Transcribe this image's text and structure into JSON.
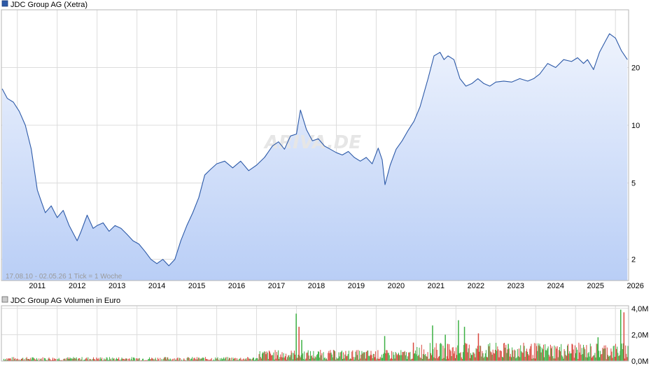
{
  "chart_data": [
    {
      "type": "line",
      "title": "JDC Group AG (Xetra)",
      "scale": "log",
      "grid": true,
      "series_color": "#2d5aa8",
      "fill_color_top": "#eef3fd",
      "fill_color_bottom": "#b9cef6",
      "xlim": [
        2010.6,
        2026.33
      ],
      "ylim": [
        1.55,
        40
      ],
      "x_tick_labels": [
        "2011",
        "2012",
        "2013",
        "2014",
        "2015",
        "2016",
        "2017",
        "2018",
        "2019",
        "2020",
        "2021",
        "2022",
        "2023",
        "2024",
        "2025",
        "2026"
      ],
      "y_tick_labels": [
        "2",
        "5",
        "10",
        "20"
      ],
      "y_ticks": [
        2,
        5,
        10,
        20
      ],
      "range_note": "17.08.10 - 02.05.26   1 Tick = 1 Woche",
      "watermark": "ARIVA.DE",
      "x": [
        2010.62,
        2010.75,
        2010.9,
        2011.05,
        2011.2,
        2011.35,
        2011.5,
        2011.6,
        2011.7,
        2011.85,
        2012.0,
        2012.15,
        2012.3,
        2012.5,
        2012.6,
        2012.75,
        2012.9,
        2013.0,
        2013.15,
        2013.3,
        2013.45,
        2013.6,
        2013.75,
        2013.9,
        2014.05,
        2014.2,
        2014.35,
        2014.5,
        2014.65,
        2014.8,
        2014.95,
        2015.1,
        2015.25,
        2015.4,
        2015.55,
        2015.7,
        2015.85,
        2016.0,
        2016.2,
        2016.4,
        2016.6,
        2016.8,
        2017.0,
        2017.2,
        2017.4,
        2017.55,
        2017.7,
        2017.85,
        2018.0,
        2018.1,
        2018.25,
        2018.4,
        2018.55,
        2018.7,
        2018.85,
        2019.0,
        2019.15,
        2019.3,
        2019.45,
        2019.6,
        2019.75,
        2019.9,
        2020.05,
        2020.15,
        2020.22,
        2020.35,
        2020.5,
        2020.65,
        2020.8,
        2020.95,
        2021.1,
        2021.3,
        2021.45,
        2021.6,
        2021.7,
        2021.8,
        2021.95,
        2022.1,
        2022.25,
        2022.4,
        2022.55,
        2022.7,
        2022.85,
        2023.0,
        2023.2,
        2023.4,
        2023.6,
        2023.8,
        2023.95,
        2024.1,
        2024.3,
        2024.5,
        2024.7,
        2024.9,
        2025.05,
        2025.2,
        2025.3,
        2025.45,
        2025.6,
        2025.75,
        2025.85,
        2026.0,
        2026.15,
        2026.3
      ],
      "y": [
        15.5,
        13.8,
        13.2,
        11.8,
        10.0,
        7.5,
        4.6,
        4.0,
        3.5,
        3.8,
        3.3,
        3.6,
        3.0,
        2.5,
        2.8,
        3.4,
        2.9,
        3.0,
        3.1,
        2.8,
        3.0,
        2.9,
        2.7,
        2.5,
        2.4,
        2.2,
        2.0,
        1.9,
        2.0,
        1.85,
        2.0,
        2.5,
        3.0,
        3.5,
        4.2,
        5.5,
        5.9,
        6.3,
        6.5,
        6.0,
        6.5,
        5.8,
        6.2,
        6.8,
        7.8,
        8.2,
        7.5,
        8.8,
        9.0,
        12.0,
        9.5,
        8.3,
        8.5,
        7.8,
        7.5,
        7.2,
        7.0,
        7.3,
        6.8,
        6.5,
        6.8,
        6.3,
        7.6,
        6.6,
        4.9,
        6.2,
        7.5,
        8.3,
        9.4,
        10.5,
        12.5,
        17.5,
        23.0,
        24.0,
        22.0,
        23.0,
        22.0,
        17.5,
        16.0,
        16.5,
        17.5,
        16.5,
        16.0,
        16.8,
        17.0,
        16.8,
        17.5,
        17.0,
        17.5,
        18.5,
        21.0,
        20.0,
        22.0,
        21.5,
        22.5,
        21.0,
        22.0,
        19.5,
        24.0,
        27.5,
        30.0,
        28.5,
        24.5,
        22.0
      ]
    },
    {
      "type": "bar",
      "title": "JDC Group AG Volumen in Euro",
      "up_color": "#3cb043",
      "down_color": "#d9473d",
      "ylim": [
        0,
        4.2
      ],
      "y_tick_labels": [
        "0,0M",
        "2,0M",
        "4,0M"
      ],
      "y_ticks": [
        0,
        2,
        4
      ],
      "unit": "M",
      "x_positions": [
        2017.98,
        2018.05,
        2018.12,
        2020.2,
        2020.92,
        2021.4,
        2021.72,
        2021.78,
        2022.05,
        2022.2,
        2022.55,
        2023.3,
        2024.1,
        2024.9,
        2025.55,
        2026.12,
        2026.2
      ],
      "peak_values": [
        3.6,
        2.6,
        1.6,
        1.9,
        1.4,
        2.7,
        2.0,
        1.3,
        3.1,
        2.6,
        2.1,
        1.3,
        1.1,
        1.3,
        1.8,
        3.9,
        3.7
      ],
      "base_level_2011_2016": 0.2,
      "base_level_2017_2020": 0.55,
      "base_level_2021_2026": 0.9
    }
  ]
}
